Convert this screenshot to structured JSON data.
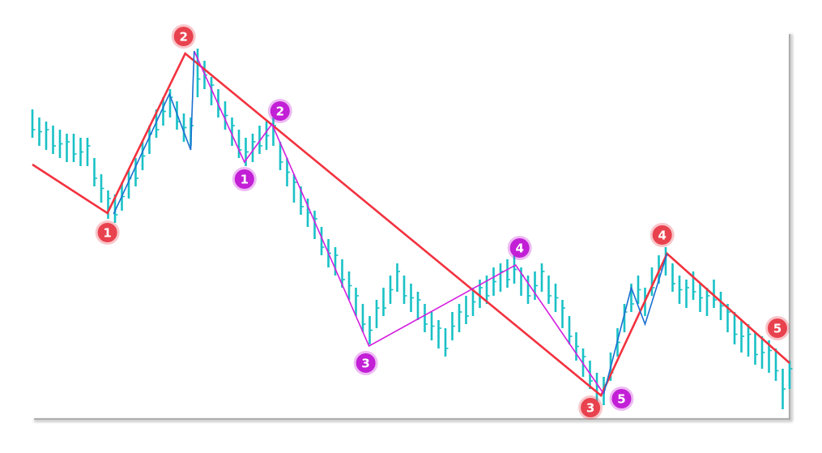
{
  "chart_data": {
    "type": "line",
    "title": "",
    "xlabel": "",
    "ylabel": "",
    "grid": false,
    "bar_color": "#19c1c6",
    "price_bars": {
      "high": [
        77,
        75,
        74,
        73,
        72,
        71,
        71,
        70,
        70,
        65,
        61,
        57,
        56,
        59,
        62,
        65,
        69,
        73,
        77,
        80,
        82,
        79,
        76,
        75,
        92,
        89,
        85,
        82,
        79,
        75,
        72,
        70,
        71,
        73,
        74,
        75,
        69,
        65,
        61,
        58,
        55,
        52,
        48,
        45,
        43,
        40,
        37,
        33,
        29,
        26,
        30,
        33,
        36,
        39,
        36,
        34,
        32,
        29,
        27,
        25,
        23,
        27,
        29,
        31,
        33,
        35,
        36,
        38,
        39,
        40,
        41,
        38,
        36,
        37,
        39,
        36,
        34,
        30,
        26,
        22,
        18,
        15,
        12,
        11,
        17,
        23,
        29,
        34,
        36,
        33,
        38,
        41,
        43,
        39,
        36,
        35,
        37,
        34,
        33,
        35,
        32,
        29,
        27,
        25,
        24,
        22,
        21,
        20,
        18,
        13,
        15
      ],
      "low": [
        70,
        68,
        67,
        66,
        65,
        64,
        64,
        63,
        63,
        58,
        54,
        50,
        49,
        52,
        55,
        58,
        62,
        66,
        70,
        73,
        75,
        72,
        69,
        68,
        80,
        82,
        78,
        75,
        72,
        68,
        65,
        63,
        64,
        66,
        67,
        68,
        62,
        58,
        54,
        51,
        48,
        45,
        41,
        38,
        36,
        33,
        30,
        26,
        22,
        19,
        23,
        26,
        29,
        32,
        29,
        27,
        25,
        22,
        20,
        18,
        16,
        20,
        22,
        24,
        26,
        28,
        29,
        31,
        32,
        33,
        34,
        31,
        29,
        30,
        32,
        29,
        27,
        23,
        19,
        15,
        11,
        8,
        5,
        4,
        10,
        16,
        22,
        27,
        29,
        26,
        31,
        34,
        36,
        32,
        29,
        28,
        30,
        27,
        26,
        28,
        25,
        22,
        19,
        17,
        16,
        14,
        13,
        12,
        10,
        3,
        8
      ]
    },
    "waves": [
      {
        "color": "#f2323f",
        "points": [
          [
            0,
            63.4
          ],
          [
            10.9,
            51.4
          ],
          [
            22.2,
            90.8
          ],
          [
            82.6,
            6.4
          ],
          [
            92.2,
            41.4
          ],
          [
            110,
            14.4
          ]
        ],
        "labels": [
          {
            "vertex": 1,
            "text": "1"
          },
          {
            "vertex": 2,
            "text": "2"
          },
          {
            "vertex": 3,
            "text": "3"
          },
          {
            "vertex": 4,
            "text": "4"
          },
          {
            "vertex": 5,
            "text": "5"
          }
        ]
      },
      {
        "color": "#d41fe0",
        "points": [
          [
            23.5,
            91.4
          ],
          [
            30.8,
            64
          ],
          [
            34.8,
            73.4
          ],
          [
            48.9,
            18.6
          ],
          [
            70.2,
            38.6
          ],
          [
            83,
            6.8
          ]
        ],
        "labels": [
          {
            "vertex": 1,
            "text": "1"
          },
          {
            "vertex": 2,
            "text": "2"
          },
          {
            "vertex": 3,
            "text": "3"
          },
          {
            "vertex": 4,
            "text": "4"
          },
          {
            "vertex": 5,
            "text": "5"
          }
        ]
      },
      {
        "color": "#1a6fd0",
        "points": [
          [
            11.8,
            51.2
          ],
          [
            19.9,
            80.8
          ],
          [
            23,
            67
          ],
          [
            23.5,
            91.4
          ]
        ],
        "labels": []
      },
      {
        "color": "#1a6fd0",
        "points": [
          [
            83,
            6.8
          ],
          [
            87,
            33
          ],
          [
            89,
            24
          ],
          [
            92.2,
            41.4
          ]
        ],
        "labels": []
      }
    ],
    "label_colors": {
      "red": "#e8424e",
      "purple": "#c21fd6"
    }
  }
}
